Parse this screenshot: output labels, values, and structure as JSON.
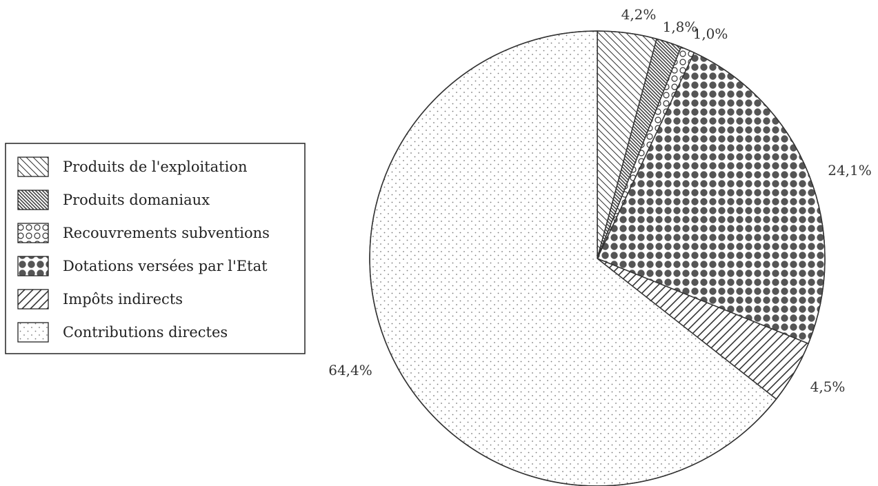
{
  "chart_data": {
    "type": "pie",
    "title": "",
    "start_angle_deg": 0,
    "direction": "clockwise",
    "slices": [
      {
        "label": "Produits de l'exploitation",
        "value": 4.2,
        "value_label": "4,2%",
        "pattern": "hatch-backward"
      },
      {
        "label": "Produits domaniaux",
        "value": 1.8,
        "value_label": "1,8%",
        "pattern": "hatch-backward-dense"
      },
      {
        "label": "Recouvrements subventions",
        "value": 1.0,
        "value_label": "1,0%",
        "pattern": "open-circles"
      },
      {
        "label": "Dotations versées par l'Etat",
        "value": 24.1,
        "value_label": "24,1%",
        "pattern": "dense-dots"
      },
      {
        "label": "Impôts indirects",
        "value": 4.5,
        "value_label": "4,5%",
        "pattern": "hatch-forward"
      },
      {
        "label": "Contributions directes",
        "value": 64.4,
        "value_label": "64,4%",
        "pattern": "sparse-dots"
      }
    ],
    "legend_position": "left"
  },
  "colors": {
    "outline": "#333333",
    "dense_dots": "#555555",
    "dense_hatch": "#444444",
    "sparse_dots": "#777777"
  }
}
